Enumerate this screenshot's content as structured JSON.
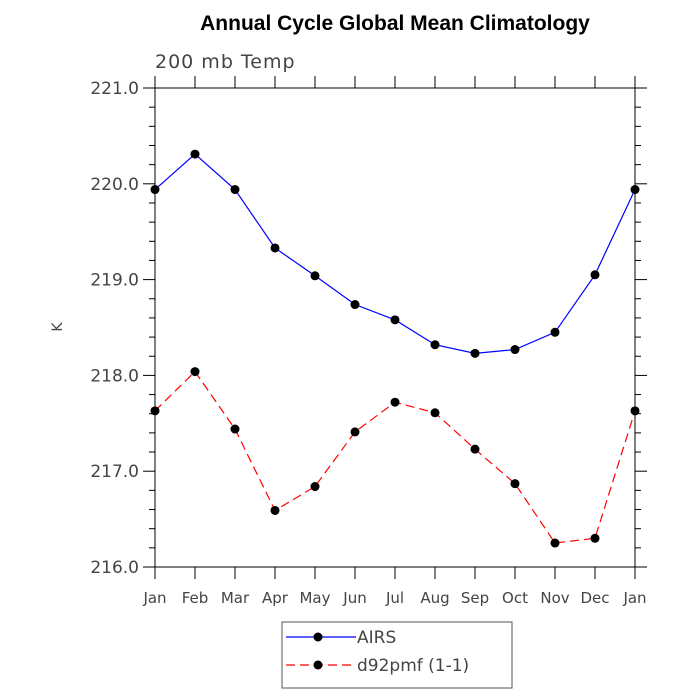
{
  "chart_data": {
    "type": "line",
    "title": "Annual Cycle Global Mean Climatology",
    "subtitle": "200 mb Temp",
    "xlabel": "",
    "ylabel": "K",
    "categories": [
      "Jan",
      "Feb",
      "Mar",
      "Apr",
      "May",
      "Jun",
      "Jul",
      "Aug",
      "Sep",
      "Oct",
      "Nov",
      "Dec",
      "Jan"
    ],
    "ylim": [
      216.0,
      221.0
    ],
    "yticks": [
      216.0,
      217.0,
      218.0,
      219.0,
      220.0,
      221.0
    ],
    "ytick_labels": [
      "216.0",
      "217.0",
      "218.0",
      "219.0",
      "220.0",
      "221.0"
    ],
    "legend_position": "bottom-center",
    "series": [
      {
        "name": "AIRS",
        "color": "#0000ff",
        "dash": "solid",
        "values": [
          219.94,
          220.31,
          219.94,
          219.33,
          219.04,
          218.74,
          218.58,
          218.32,
          218.23,
          218.27,
          218.45,
          219.05,
          219.94
        ]
      },
      {
        "name": "d92pmf (1-1)",
        "color": "#ff0000",
        "dash": "dashed",
        "values": [
          217.63,
          218.04,
          217.44,
          216.59,
          216.84,
          217.41,
          217.72,
          217.61,
          217.23,
          216.87,
          216.25,
          216.3,
          217.63
        ]
      }
    ]
  }
}
